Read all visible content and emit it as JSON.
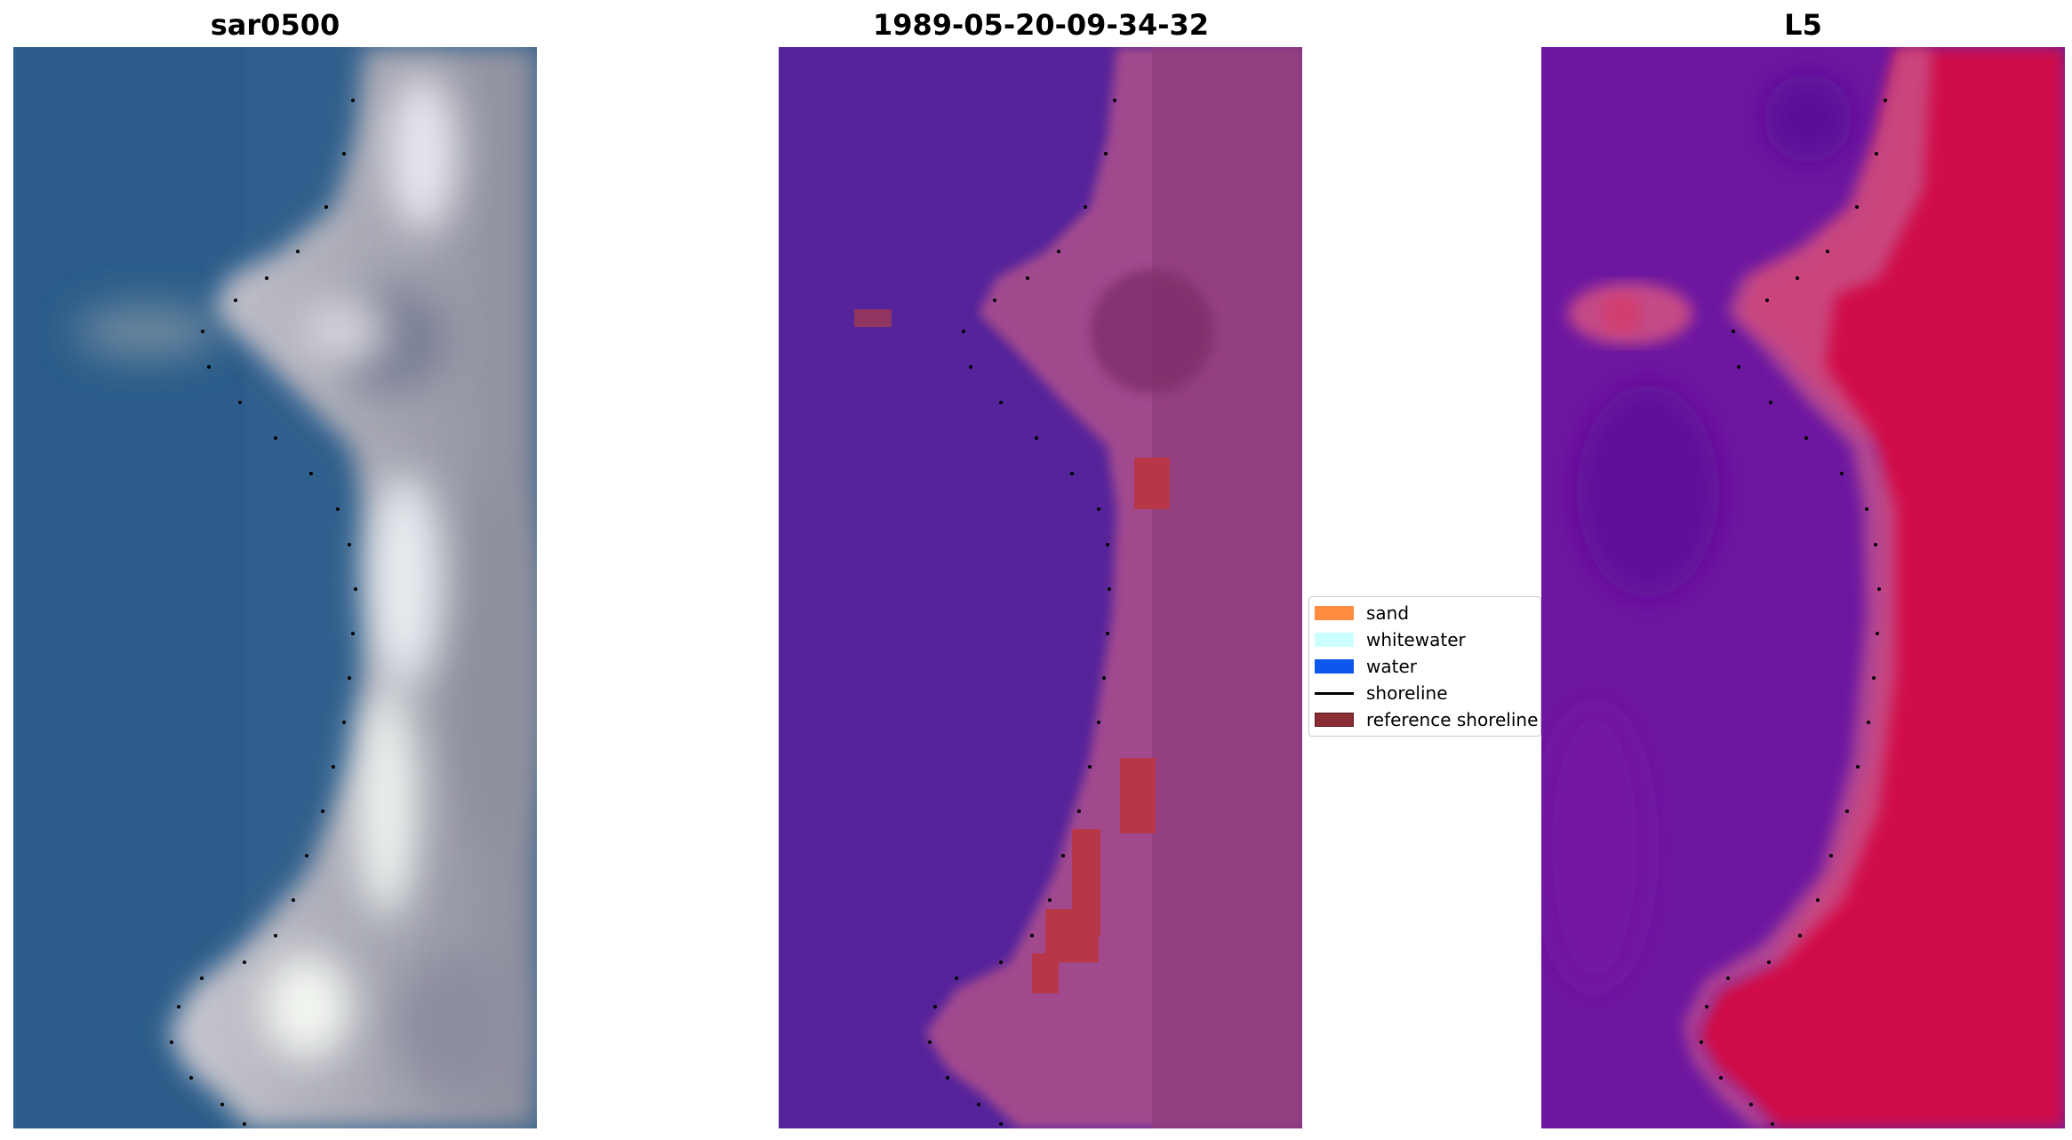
{
  "panels": [
    {
      "title": "sar0500"
    },
    {
      "title": "1989-05-20-09-34-32"
    },
    {
      "title": "L5"
    }
  ],
  "legend": [
    {
      "label": "sand",
      "color": "#ff8c3f"
    },
    {
      "label": "whitewater",
      "color": "#ccffff"
    },
    {
      "label": "water",
      "color": "#0d57ee"
    },
    {
      "label": "shoreline",
      "color": "#000000"
    },
    {
      "label": "reference shoreline",
      "color": "#8b2d35"
    }
  ]
}
